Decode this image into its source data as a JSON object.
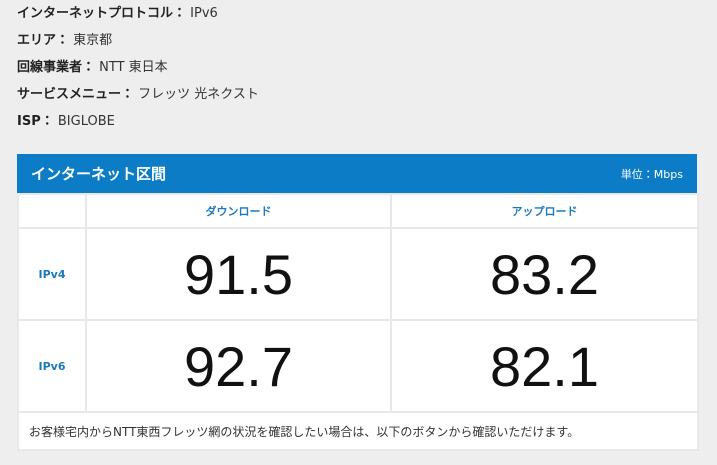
{
  "info": [
    {
      "label": "インターネットプロトコル：",
      "value": "IPv6"
    },
    {
      "label": "エリア：",
      "value": "東京都"
    },
    {
      "label": "回線事業者：",
      "value": "NTT 東日本"
    },
    {
      "label": "サービスメニュー：",
      "value": "フレッツ 光ネクスト"
    },
    {
      "label": "ISP：",
      "value": "BIGLOBE"
    }
  ],
  "table": {
    "title": "インターネット区間",
    "unit": "単位：Mbps",
    "columns": [
      "ダウンロード",
      "アップロード"
    ],
    "rows": [
      {
        "label": "IPv4",
        "values": [
          91.5,
          83.2
        ]
      },
      {
        "label": "IPv6",
        "values": [
          92.7,
          82.1
        ]
      }
    ],
    "note": "お客様宅内からNTT東西フレッツ網の状況を確認したい場合は、以下のボタンから確認いただけます。"
  }
}
